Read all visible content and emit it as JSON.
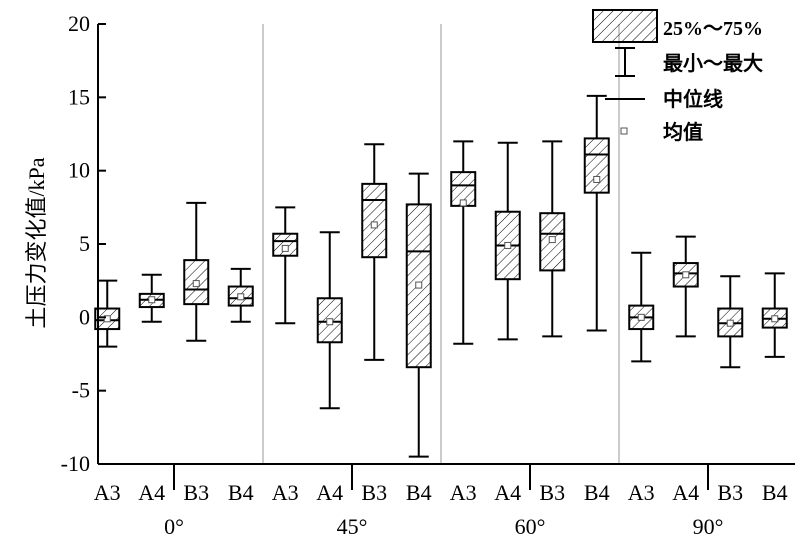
{
  "chart_data": {
    "type": "box",
    "ylabel": "土压力变化值/kPa",
    "ylim": [
      -10,
      20
    ],
    "y_ticks": [
      -10,
      -5,
      0,
      5,
      10,
      15,
      20
    ],
    "groups": [
      {
        "label": "0°",
        "boxes": [
          {
            "category": "A3",
            "min": -2.0,
            "q1": -0.8,
            "median": -0.2,
            "q3": 0.6,
            "max": 2.5,
            "mean": -0.1
          },
          {
            "category": "A4",
            "min": -0.3,
            "q1": 0.7,
            "median": 1.2,
            "q3": 1.6,
            "max": 2.9,
            "mean": 1.2
          },
          {
            "category": "B3",
            "min": -1.6,
            "q1": 0.9,
            "median": 1.9,
            "q3": 3.9,
            "max": 7.8,
            "mean": 2.3
          },
          {
            "category": "B4",
            "min": -0.3,
            "q1": 0.8,
            "median": 1.3,
            "q3": 2.1,
            "max": 3.3,
            "mean": 1.4
          }
        ]
      },
      {
        "label": "45°",
        "boxes": [
          {
            "category": "A3",
            "min": -0.4,
            "q1": 4.2,
            "median": 5.2,
            "q3": 5.7,
            "max": 7.5,
            "mean": 4.7
          },
          {
            "category": "A4",
            "min": -6.2,
            "q1": -1.7,
            "median": -0.3,
            "q3": 1.3,
            "max": 5.8,
            "mean": -0.3
          },
          {
            "category": "B3",
            "min": -2.9,
            "q1": 4.1,
            "median": 8.0,
            "q3": 9.1,
            "max": 11.8,
            "mean": 6.3
          },
          {
            "category": "B4",
            "min": -9.5,
            "q1": -3.4,
            "median": 4.5,
            "q3": 7.7,
            "max": 9.8,
            "mean": 2.2
          }
        ]
      },
      {
        "label": "60°",
        "boxes": [
          {
            "category": "A3",
            "min": -1.8,
            "q1": 7.6,
            "median": 9.0,
            "q3": 9.9,
            "max": 12.0,
            "mean": 7.8
          },
          {
            "category": "A4",
            "min": -1.5,
            "q1": 2.6,
            "median": 4.9,
            "q3": 7.2,
            "max": 11.9,
            "mean": 4.9
          },
          {
            "category": "B3",
            "min": -1.3,
            "q1": 3.2,
            "median": 5.7,
            "q3": 7.1,
            "max": 12.0,
            "mean": 5.3
          },
          {
            "category": "B4",
            "min": -0.9,
            "q1": 8.5,
            "median": 11.1,
            "q3": 12.2,
            "max": 15.1,
            "mean": 9.4
          }
        ]
      },
      {
        "label": "90°",
        "boxes": [
          {
            "category": "A3",
            "min": -3.0,
            "q1": -0.8,
            "median": 0.0,
            "q3": 0.8,
            "max": 4.4,
            "mean": 0.0
          },
          {
            "category": "A4",
            "min": -1.3,
            "q1": 2.1,
            "median": 3.0,
            "q3": 3.7,
            "max": 5.5,
            "mean": 2.9
          },
          {
            "category": "B3",
            "min": -3.4,
            "q1": -1.3,
            "median": -0.4,
            "q3": 0.6,
            "max": 2.8,
            "mean": -0.4
          },
          {
            "category": "B4",
            "min": -2.7,
            "q1": -0.7,
            "median": -0.1,
            "q3": 0.6,
            "max": 3.0,
            "mean": -0.1
          }
        ]
      }
    ],
    "legend": {
      "position": "top-right",
      "entries": [
        "25%～75%",
        "最小～最大",
        "中位线",
        "均值"
      ]
    }
  }
}
